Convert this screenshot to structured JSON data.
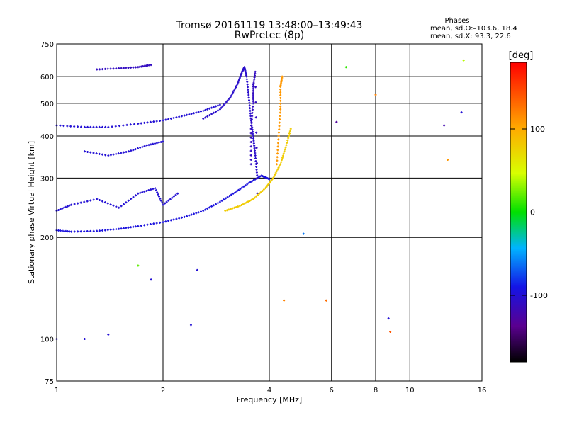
{
  "header": {
    "title_line1": "Tromsø 20161119 13:48:00–13:49:43",
    "title_line2": "RwPretec (8p)",
    "stats_heading": "Phases",
    "stats_line1": "mean, sd,O:–103.6, 18.4",
    "stats_line2": "mean, sd,X:  93.3, 22.6"
  },
  "chart_data": {
    "type": "scatter",
    "title": "Tromsø 20161119 13:48:00–13:49:43",
    "subtitle": "RwPretec (8p)",
    "xlabel": "Frequency [MHz]",
    "ylabel": "Stationary phase Virtual Height [km]",
    "x_scale": "log",
    "y_scale": "log",
    "xlim": [
      1,
      16
    ],
    "ylim": [
      75,
      750
    ],
    "x_ticks": [
      1,
      2,
      4,
      6,
      8,
      10,
      16
    ],
    "x_tick_labels": [
      "1",
      "2",
      "4",
      "6",
      "8",
      "10",
      "16"
    ],
    "y_ticks": [
      75,
      100,
      200,
      300,
      400,
      500,
      600,
      750
    ],
    "y_tick_labels": [
      "75",
      "100",
      "200",
      "300",
      "400",
      "500",
      "600",
      "750"
    ],
    "grid": true,
    "colorbar": {
      "label": "[deg]",
      "range": [
        -180,
        180
      ],
      "ticks": [
        -100,
        0,
        100
      ],
      "tick_labels": [
        "-100",
        "0",
        "100"
      ]
    },
    "traces": [
      {
        "name": "O-mode trace",
        "phase_deg": -95,
        "points": [
          [
            1.0,
            210
          ],
          [
            1.1,
            208
          ],
          [
            1.3,
            209
          ],
          [
            1.5,
            212
          ],
          [
            1.7,
            216
          ],
          [
            2.0,
            222
          ],
          [
            2.3,
            230
          ],
          [
            2.6,
            240
          ],
          [
            2.9,
            255
          ],
          [
            3.2,
            272
          ],
          [
            3.5,
            290
          ],
          [
            3.8,
            305
          ],
          [
            4.0,
            298
          ]
        ]
      },
      {
        "name": "F2 O-mode cusp",
        "phase_deg": -105,
        "points": [
          [
            2.6,
            450
          ],
          [
            2.9,
            480
          ],
          [
            3.1,
            520
          ],
          [
            3.25,
            570
          ],
          [
            3.35,
            620
          ],
          [
            3.4,
            640
          ],
          [
            3.45,
            600
          ],
          [
            3.5,
            520
          ],
          [
            3.55,
            450
          ],
          [
            3.6,
            400
          ],
          [
            3.65,
            350
          ],
          [
            3.7,
            300
          ]
        ]
      },
      {
        "name": "F2 vertical column",
        "phase_deg": -110,
        "points": [
          [
            3.55,
            330
          ],
          [
            3.55,
            420
          ],
          [
            3.6,
            500
          ],
          [
            3.6,
            560
          ],
          [
            3.65,
            620
          ],
          [
            3.7,
            270
          ]
        ]
      },
      {
        "name": "X-mode trace",
        "phase_deg": 80,
        "points": [
          [
            3.0,
            240
          ],
          [
            3.3,
            248
          ],
          [
            3.6,
            260
          ],
          [
            3.9,
            280
          ],
          [
            4.1,
            300
          ],
          [
            4.3,
            330
          ],
          [
            4.45,
            370
          ],
          [
            4.6,
            420
          ]
        ]
      },
      {
        "name": "X-mode column",
        "phase_deg": 110,
        "points": [
          [
            4.2,
            330
          ],
          [
            4.25,
            400
          ],
          [
            4.3,
            480
          ],
          [
            4.3,
            560
          ],
          [
            4.35,
            600
          ]
        ]
      },
      {
        "name": "Upper echo 430-460 km",
        "phase_deg": -100,
        "points": [
          [
            1.0,
            430
          ],
          [
            1.2,
            425
          ],
          [
            1.4,
            425
          ],
          [
            1.7,
            435
          ],
          [
            2.0,
            445
          ],
          [
            2.3,
            460
          ],
          [
            2.6,
            475
          ],
          [
            2.9,
            495
          ]
        ]
      },
      {
        "name": "Upper echo 630 km",
        "phase_deg": -110,
        "points": [
          [
            1.3,
            630
          ],
          [
            1.5,
            635
          ],
          [
            1.7,
            640
          ],
          [
            1.85,
            650
          ]
        ]
      },
      {
        "name": "Cluster 350-400 km",
        "phase_deg": -100,
        "points": [
          [
            1.2,
            360
          ],
          [
            1.4,
            350
          ],
          [
            1.6,
            360
          ],
          [
            1.8,
            375
          ],
          [
            2.0,
            385
          ]
        ]
      },
      {
        "name": "Spread echoes 220-300 km",
        "phase_deg": -100,
        "points": [
          [
            1.0,
            240
          ],
          [
            1.1,
            250
          ],
          [
            1.3,
            260
          ],
          [
            1.5,
            245
          ],
          [
            1.7,
            270
          ],
          [
            1.9,
            280
          ],
          [
            2.0,
            250
          ],
          [
            2.2,
            270
          ]
        ]
      }
    ],
    "scattered_points": [
      {
        "x": 1.0,
        "y": 100,
        "phase_deg": -100
      },
      {
        "x": 1.2,
        "y": 100,
        "phase_deg": -100
      },
      {
        "x": 1.4,
        "y": 103,
        "phase_deg": -100
      },
      {
        "x": 1.7,
        "y": 165,
        "phase_deg": 20
      },
      {
        "x": 1.85,
        "y": 150,
        "phase_deg": -100
      },
      {
        "x": 2.4,
        "y": 110,
        "phase_deg": -100
      },
      {
        "x": 2.5,
        "y": 160,
        "phase_deg": -100
      },
      {
        "x": 4.4,
        "y": 130,
        "phase_deg": 120
      },
      {
        "x": 5.0,
        "y": 205,
        "phase_deg": -60
      },
      {
        "x": 5.8,
        "y": 130,
        "phase_deg": 130
      },
      {
        "x": 6.2,
        "y": 440,
        "phase_deg": -130
      },
      {
        "x": 6.6,
        "y": 640,
        "phase_deg": 10
      },
      {
        "x": 8.0,
        "y": 530,
        "phase_deg": 120
      },
      {
        "x": 8.8,
        "y": 105,
        "phase_deg": 140
      },
      {
        "x": 8.7,
        "y": 115,
        "phase_deg": -100
      },
      {
        "x": 12.5,
        "y": 430,
        "phase_deg": -120
      },
      {
        "x": 14.0,
        "y": 470,
        "phase_deg": -100
      },
      {
        "x": 14.2,
        "y": 670,
        "phase_deg": 40
      },
      {
        "x": 12.8,
        "y": 340,
        "phase_deg": 110
      }
    ]
  }
}
